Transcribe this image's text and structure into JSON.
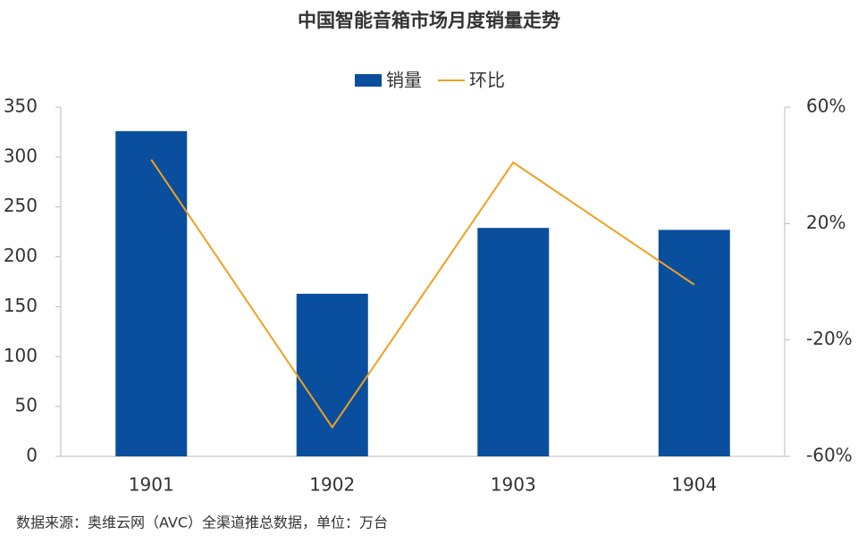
{
  "chart_data": {
    "type": "bar",
    "title": "中国智能音箱市场月度销量走势",
    "categories": [
      "1901",
      "1902",
      "1903",
      "1904"
    ],
    "series": [
      {
        "name": "销量",
        "color": "#0a4f9e",
        "type": "bar",
        "values": [
          326,
          163,
          229,
          227
        ]
      },
      {
        "name": "环比",
        "color": "#f0a020",
        "type": "line",
        "axis": "y2",
        "values": [
          42,
          -50,
          41,
          -1
        ]
      }
    ],
    "ylim": [
      0,
      350
    ],
    "yticks": [
      0,
      50,
      100,
      150,
      200,
      250,
      300,
      350
    ],
    "y2lim": [
      -60,
      60
    ],
    "y2ticks": [
      {
        "value": -60,
        "label": "-60%"
      },
      {
        "value": -20,
        "label": "-20%"
      },
      {
        "value": 20,
        "label": "20%"
      },
      {
        "value": 60,
        "label": "60%"
      }
    ],
    "legend": "top",
    "source": "数据来源：奥维云网（AVC）全渠道推总数据，单位：万台"
  }
}
